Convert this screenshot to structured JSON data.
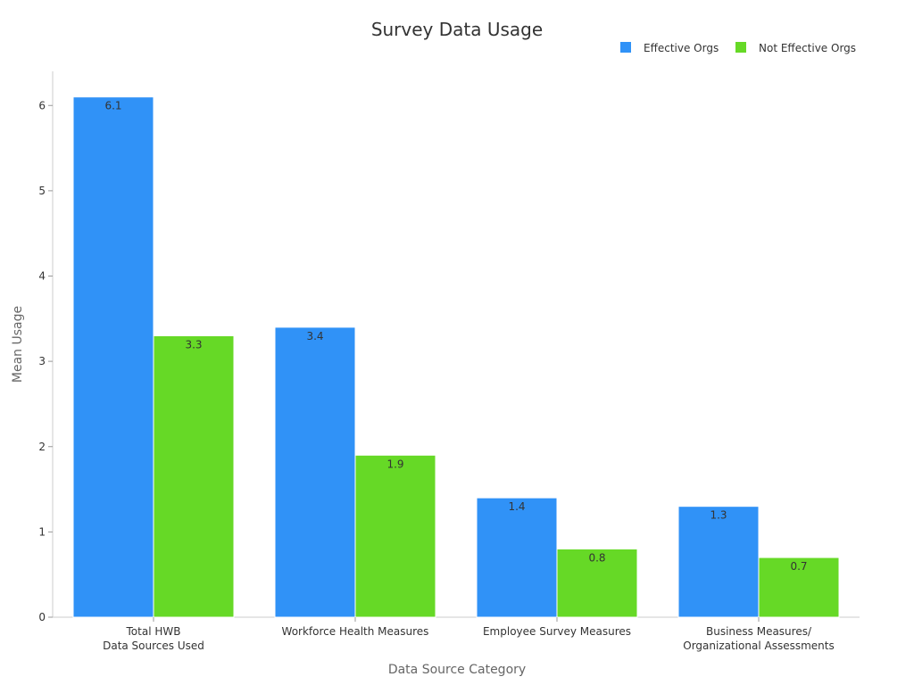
{
  "chart_data": {
    "type": "bar",
    "title": "Survey Data Usage",
    "xlabel": "Data Source Category",
    "ylabel": "Mean Usage",
    "categories": [
      [
        "Total HWB",
        "Data Sources Used"
      ],
      [
        "Workforce Health Measures"
      ],
      [
        "Employee Survey Measures"
      ],
      [
        "Business Measures/",
        "Organizational Assessments"
      ]
    ],
    "series": [
      {
        "name": "Effective Orgs",
        "color": "#3092f7",
        "values": [
          6.1,
          3.4,
          1.4,
          1.3
        ]
      },
      {
        "name": "Not Effective Orgs",
        "color": "#66d926",
        "values": [
          3.3,
          1.9,
          0.8,
          0.7
        ]
      }
    ],
    "ylim": [
      0,
      6.4
    ],
    "yticks": [
      0,
      1,
      2,
      3,
      4,
      5,
      6
    ],
    "grid": false,
    "legend": "top-right"
  }
}
